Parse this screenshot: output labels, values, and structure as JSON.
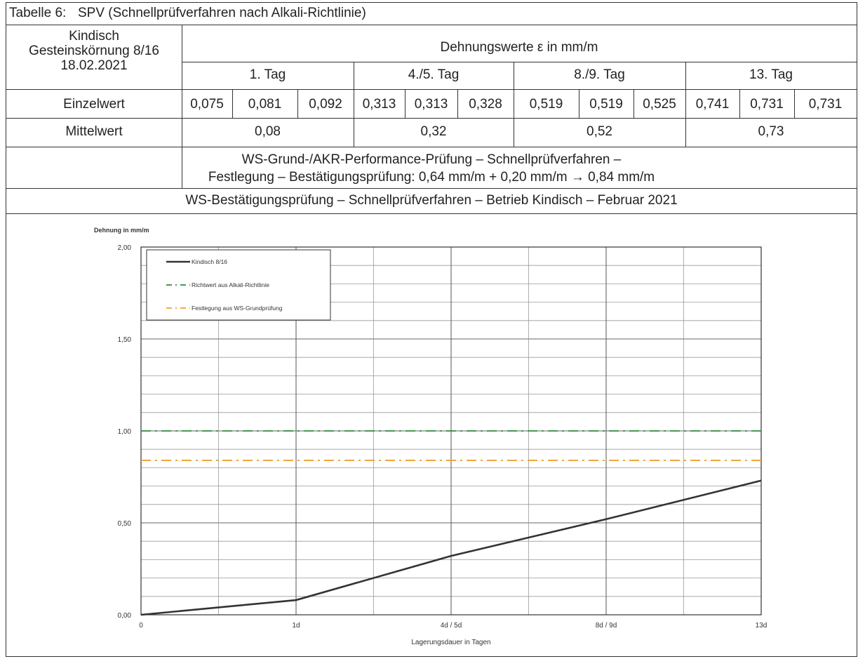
{
  "table": {
    "caption_label": "Tabelle 6:",
    "caption_title": "SPV (Schnellprüfverfahren nach Alkali-Richtlinie)",
    "sample": [
      "Kindisch",
      "Gesteinskörnung 8/16",
      "18.02.2021"
    ],
    "header_main": "Dehnungswerte ε in mm/m",
    "periods": [
      "1. Tag",
      "4./5. Tag",
      "8./9. Tag",
      "13. Tag"
    ],
    "row_single_label": "Einzelwert",
    "single_values": [
      "0,075",
      "0,081",
      "0,092",
      "0,313",
      "0,313",
      "0,328",
      "0,519",
      "0,519",
      "0,525",
      "0,741",
      "0,731",
      "0,731"
    ],
    "row_mean_label": "Mittelwert",
    "mean_values": [
      "0,08",
      "0,32",
      "0,52",
      "0,73"
    ],
    "note_line1": "WS-Grund-/AKR-Performance-Prüfung – Schnellprüfverfahren –",
    "note_line2": "Festlegung – Bestätigungsprüfung: 0,64 mm/m + 0,20 mm/m → 0,84 mm/m",
    "subtitle": "WS-Bestätigungsprüfung – Schnellprüfverfahren – Betrieb Kindisch – Februar  2021"
  },
  "chart_data": {
    "type": "line",
    "ylabel": "Dehnung in mm/m",
    "xlabel": "Lagerungsdauer in Tagen",
    "x_ticks": [
      "0",
      "1d",
      "4d / 5d",
      "8d / 9d",
      "13d"
    ],
    "y_ticks": [
      "0,00",
      "0,50",
      "1,00",
      "1,50",
      "2,00"
    ],
    "ylim": [
      0,
      2.0
    ],
    "y_tick_values": [
      0,
      0.5,
      1.0,
      1.5,
      2.0
    ],
    "y_minor_step": 0.1,
    "x_positions": [
      0,
      1,
      2,
      3,
      4
    ],
    "x_minor_positions": [
      0.5,
      1.5,
      2.5,
      3.5
    ],
    "grid": true,
    "legend_position": "top-left",
    "series": [
      {
        "name": "Kindisch 8/16",
        "style": "solid",
        "color": "#333333",
        "x": [
          0,
          1,
          2,
          3,
          4
        ],
        "y": [
          0.0,
          0.08,
          0.32,
          0.52,
          0.73
        ]
      },
      {
        "name": "Richtwert aus Alkali-Richtlinie",
        "style": "dashdot",
        "color": "#2e8b3c",
        "x": [
          0,
          4
        ],
        "y": [
          1.0,
          1.0
        ]
      },
      {
        "name": "Festlegung aus WS-Grundprüfung",
        "style": "dashdot",
        "color": "#f0a030",
        "x": [
          0,
          4
        ],
        "y": [
          0.84,
          0.84
        ]
      }
    ]
  }
}
